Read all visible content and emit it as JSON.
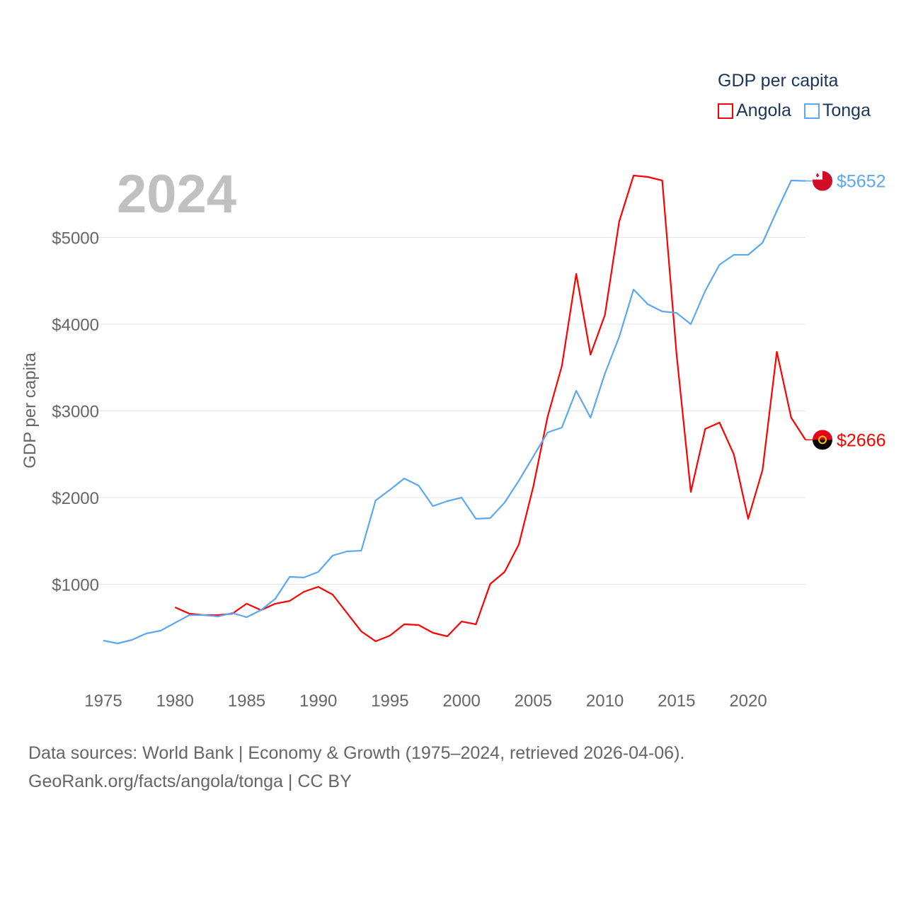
{
  "chart_data": {
    "type": "line",
    "title": "GDP per capita",
    "year_label": "2024",
    "ylabel": "GDP per capita",
    "xlabel": "",
    "xlim": [
      1975,
      2024
    ],
    "ylim": [
      0,
      5800
    ],
    "grid": true,
    "legend_placement": "top-right",
    "x_ticks": [
      1975,
      1980,
      1985,
      1990,
      1995,
      2000,
      2005,
      2010,
      2015,
      2020
    ],
    "y_ticks": [
      1000,
      2000,
      3000,
      4000,
      5000
    ],
    "y_tick_labels": [
      "$1000",
      "$2000",
      "$3000",
      "$4000",
      "$5000"
    ],
    "series": [
      {
        "name": "Angola",
        "color": "#ff0000",
        "end_label": "$2666",
        "start_year": 1980,
        "values": [
          735,
          661,
          645,
          645,
          661,
          776,
          702,
          776,
          808,
          914,
          971,
          882,
          669,
          457,
          343,
          408,
          539,
          531,
          441,
          400,
          571,
          539,
          1004,
          1143,
          1461,
          2122,
          2931,
          3518,
          4580,
          3649,
          4106,
          5184,
          5714,
          5698,
          5657,
          3657,
          2065,
          2792,
          2865,
          2498,
          1755,
          2318,
          3682,
          2922,
          2666
        ]
      },
      {
        "name": "Tonga",
        "color": "#5ba8ef",
        "end_label": "$5652",
        "start_year": 1975,
        "values": [
          351,
          318,
          359,
          433,
          465,
          555,
          645,
          645,
          629,
          669,
          620,
          702,
          833,
          1086,
          1078,
          1143,
          1331,
          1380,
          1388,
          1967,
          2090,
          2220,
          2139,
          1902,
          1959,
          2000,
          1755,
          1763,
          1943,
          2196,
          2473,
          2751,
          2808,
          3233,
          2922,
          3429,
          3853,
          4400,
          4229,
          4147,
          4131,
          4000,
          4384,
          4686,
          4800,
          4800,
          4939,
          5306,
          5657,
          5652
        ]
      }
    ]
  },
  "legend": {
    "title": "GDP per capita",
    "items": [
      "Angola",
      "Tonga"
    ]
  },
  "source": {
    "line1": "Data sources: World Bank | Economy & Growth (1975–2024, retrieved 2026-04-06).",
    "line2": "GeoRank.org/facts/angola/tonga | CC BY"
  }
}
